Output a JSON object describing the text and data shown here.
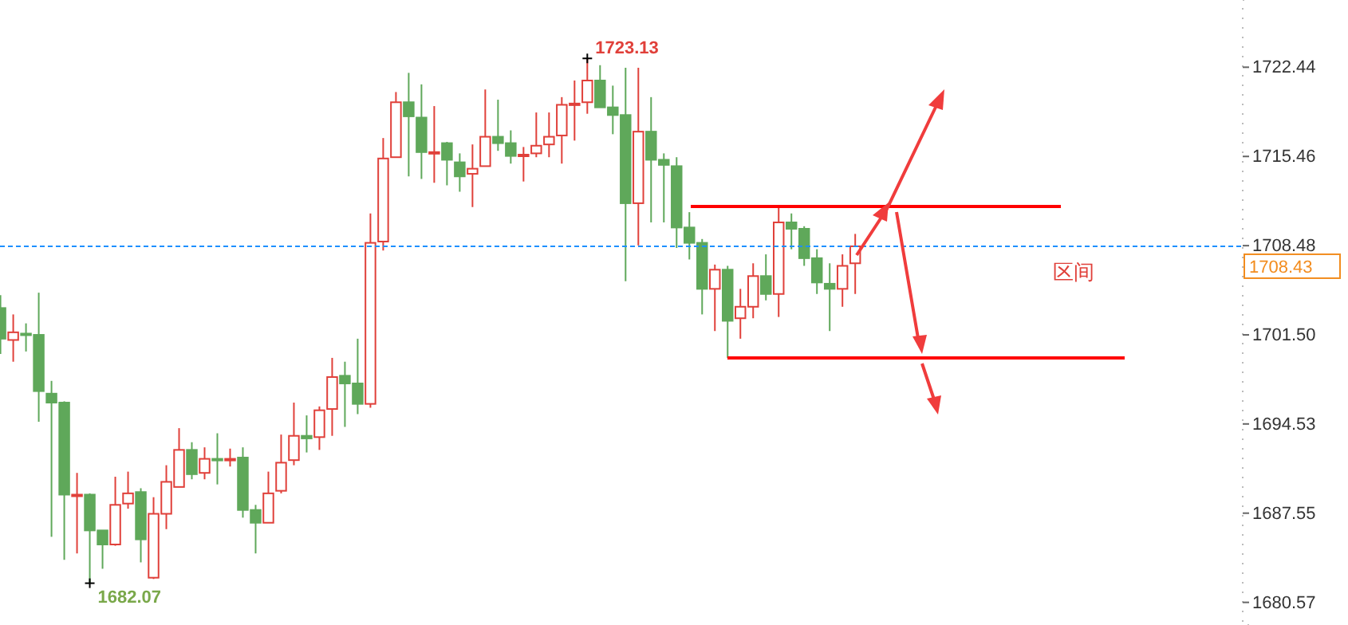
{
  "chart_data": {
    "type": "candlestick",
    "categories": [
      null,
      null,
      null,
      null,
      null,
      null,
      null,
      null,
      null,
      null,
      null,
      null,
      null,
      null,
      null,
      null,
      null,
      null,
      null,
      null,
      null,
      null,
      null,
      null,
      null,
      null,
      null,
      null,
      null,
      null,
      null,
      null,
      null,
      null,
      null,
      null,
      null,
      null,
      null,
      null,
      null,
      null,
      null,
      null,
      null,
      null,
      null,
      null,
      null,
      null,
      null,
      null,
      null,
      null,
      null,
      null,
      null,
      null,
      null,
      null,
      null,
      null,
      null,
      null,
      null,
      null,
      null,
      null,
      null,
      null,
      null,
      null,
      null,
      null,
      null,
      null,
      null,
      null,
      null,
      null,
      null,
      null,
      null,
      null,
      null,
      null,
      null,
      null,
      null,
      null,
      null,
      null,
      null,
      null,
      null,
      null,
      null,
      null
    ],
    "ohlc": [
      [
        1703.6,
        1704.6,
        1700.0,
        1701.2
      ],
      [
        1701.1,
        1703.1,
        1699.4,
        1701.7
      ],
      [
        1701.6,
        1702.4,
        1700.2,
        1701.5
      ],
      [
        1701.5,
        1704.8,
        1694.7,
        1697.1
      ],
      [
        1696.9,
        1697.9,
        1685.7,
        1696.2
      ],
      [
        1696.2,
        1696.3,
        1683.9,
        1689.0
      ],
      [
        1688.9,
        1690.7,
        1684.4,
        1689.0
      ],
      [
        1689.0,
        1689.1,
        1682.07,
        1686.2
      ],
      [
        1686.2,
        1686.2,
        1683.2,
        1685.1
      ],
      [
        1685.1,
        1690.4,
        1685.0,
        1688.2
      ],
      [
        1688.3,
        1690.8,
        1687.9,
        1689.1
      ],
      [
        1689.2,
        1689.5,
        1683.7,
        1685.5
      ],
      [
        1682.5,
        1688.8,
        1682.4,
        1687.5
      ],
      [
        1687.5,
        1691.3,
        1686.3,
        1690.0
      ],
      [
        1689.6,
        1694.2,
        1689.6,
        1692.5
      ],
      [
        1692.5,
        1693.1,
        1690.2,
        1690.6
      ],
      [
        1690.7,
        1692.7,
        1690.2,
        1691.8
      ],
      [
        1691.8,
        1693.8,
        1689.8,
        1691.7
      ],
      [
        1691.7,
        1692.6,
        1691.2,
        1691.8
      ],
      [
        1691.9,
        1692.7,
        1687.2,
        1687.8
      ],
      [
        1687.8,
        1688.2,
        1684.4,
        1686.8
      ],
      [
        1686.8,
        1690.8,
        1686.8,
        1689.1
      ],
      [
        1689.3,
        1693.7,
        1689.1,
        1691.5
      ],
      [
        1691.7,
        1696.2,
        1691.3,
        1693.6
      ],
      [
        1693.6,
        1695.2,
        1692.3,
        1693.4
      ],
      [
        1693.5,
        1695.9,
        1692.5,
        1695.6
      ],
      [
        1695.7,
        1699.7,
        1693.6,
        1698.2
      ],
      [
        1698.3,
        1699.4,
        1694.3,
        1697.7
      ],
      [
        1697.7,
        1701.2,
        1695.3,
        1696.1
      ],
      [
        1696.1,
        1711.0,
        1695.8,
        1708.7
      ],
      [
        1708.8,
        1716.9,
        1708.1,
        1715.3
      ],
      [
        1715.4,
        1720.5,
        1715.4,
        1719.7
      ],
      [
        1719.7,
        1722.0,
        1713.9,
        1718.6
      ],
      [
        1718.5,
        1721.1,
        1713.7,
        1715.8
      ],
      [
        1715.7,
        1719.4,
        1713.4,
        1715.8
      ],
      [
        1716.5,
        1716.6,
        1713.2,
        1715.2
      ],
      [
        1715.0,
        1715.7,
        1712.7,
        1713.9
      ],
      [
        1714.1,
        1716.4,
        1711.5,
        1714.5
      ],
      [
        1714.7,
        1720.7,
        1714.7,
        1717.0
      ],
      [
        1717.0,
        1719.9,
        1715.9,
        1716.5
      ],
      [
        1716.5,
        1717.5,
        1714.9,
        1715.5
      ],
      [
        1715.5,
        1716.2,
        1713.5,
        1715.6
      ],
      [
        1715.7,
        1718.9,
        1715.4,
        1716.3
      ],
      [
        1716.4,
        1718.9,
        1715.4,
        1717.0
      ],
      [
        1717.1,
        1720.1,
        1714.9,
        1719.5
      ],
      [
        1719.5,
        1721.4,
        1716.7,
        1719.6
      ],
      [
        1719.7,
        1723.13,
        1718.8,
        1721.4
      ],
      [
        1721.4,
        1722.6,
        1719.3,
        1719.3
      ],
      [
        1719.3,
        1721.0,
        1717.2,
        1718.7
      ],
      [
        1718.7,
        1722.4,
        1705.7,
        1711.8
      ],
      [
        1711.8,
        1722.4,
        1708.5,
        1717.4
      ],
      [
        1717.4,
        1720.1,
        1710.3,
        1715.2
      ],
      [
        1715.2,
        1715.7,
        1710.3,
        1714.8
      ],
      [
        1714.7,
        1715.4,
        1708.3,
        1709.9
      ],
      [
        1709.9,
        1711.1,
        1707.4,
        1708.7
      ],
      [
        1708.7,
        1709.0,
        1703.1,
        1705.1
      ],
      [
        1705.1,
        1707.0,
        1701.8,
        1706.6
      ],
      [
        1706.6,
        1706.9,
        1699.7,
        1702.6
      ],
      [
        1702.8,
        1705.1,
        1701.2,
        1703.7
      ],
      [
        1703.7,
        1707.1,
        1702.8,
        1706.1
      ],
      [
        1706.1,
        1707.8,
        1704.2,
        1704.7
      ],
      [
        1704.7,
        1711.5,
        1702.9,
        1710.3
      ],
      [
        1710.3,
        1711.0,
        1708.2,
        1709.8
      ],
      [
        1709.8,
        1710.0,
        1706.9,
        1707.5
      ],
      [
        1707.5,
        1708.2,
        1704.7,
        1705.6
      ],
      [
        1705.5,
        1707.1,
        1701.8,
        1705.1
      ],
      [
        1705.1,
        1707.8,
        1703.7,
        1706.9
      ],
      [
        1707.1,
        1709.4,
        1704.7,
        1708.43
      ],
      null,
      null,
      null,
      null,
      null,
      null,
      null,
      null,
      null,
      null,
      null,
      null,
      null,
      null,
      null,
      null,
      null,
      null,
      null,
      null,
      null,
      null,
      null,
      null,
      null,
      null,
      null,
      null,
      null,
      null
    ],
    "ylim": [
      1678.8,
      1727.7
    ],
    "yticks": [
      1680.57,
      1687.55,
      1694.53,
      {
        "value": 1701.5,
        "label": "1701.50"
      },
      1708.48,
      1715.46,
      1722.44
    ],
    "ref_lines": [
      {
        "axis": "y",
        "value": 1708.43,
        "label": "1708.43",
        "color": "#1e90ff",
        "line_style": "dashed"
      },
      {
        "axis": "y",
        "value": 1711.54,
        "label": null,
        "color": "#ff0000",
        "line_style": "solid"
      },
      {
        "axis": "y",
        "value": 1699.69,
        "label": null,
        "color": "#ff0000",
        "line_style": "solid"
      }
    ],
    "annotations": [
      "1723.13",
      "1682.07",
      "区间"
    ]
  }
}
